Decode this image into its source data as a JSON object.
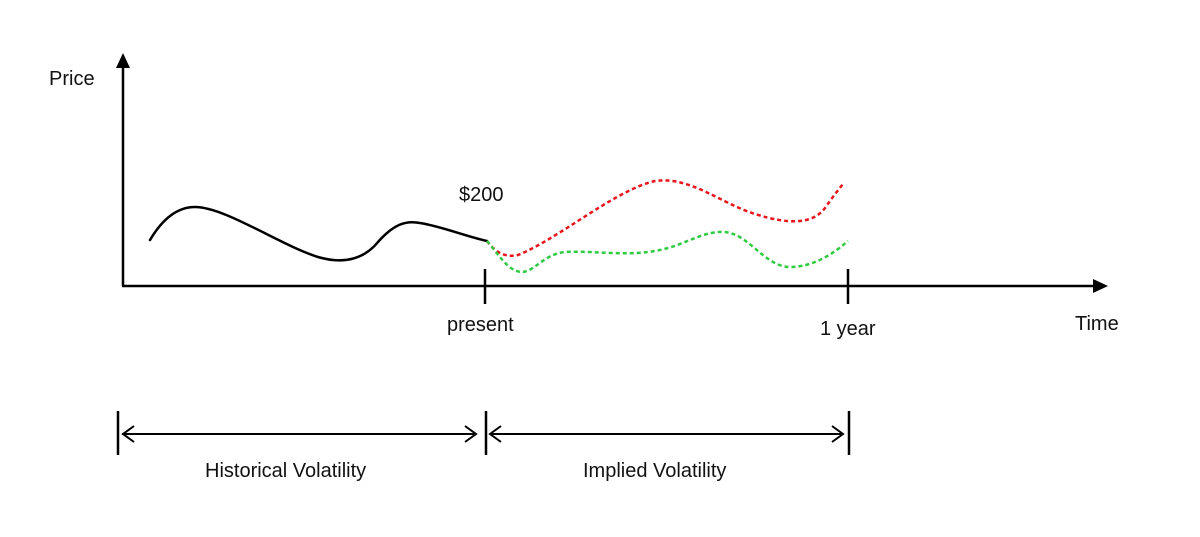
{
  "axes": {
    "y_label": "Price",
    "x_label": "Time"
  },
  "annotations": {
    "price_label": "$200",
    "present_label": "present",
    "one_year_label": "1 year"
  },
  "spans": {
    "historical_label": "Historical Volatility",
    "implied_label": "Implied Volatility"
  },
  "colors": {
    "axis": "#000000",
    "historical_line": "#000000",
    "implied_upper": "#e8161b",
    "implied_lower": "#2ecc40"
  }
}
